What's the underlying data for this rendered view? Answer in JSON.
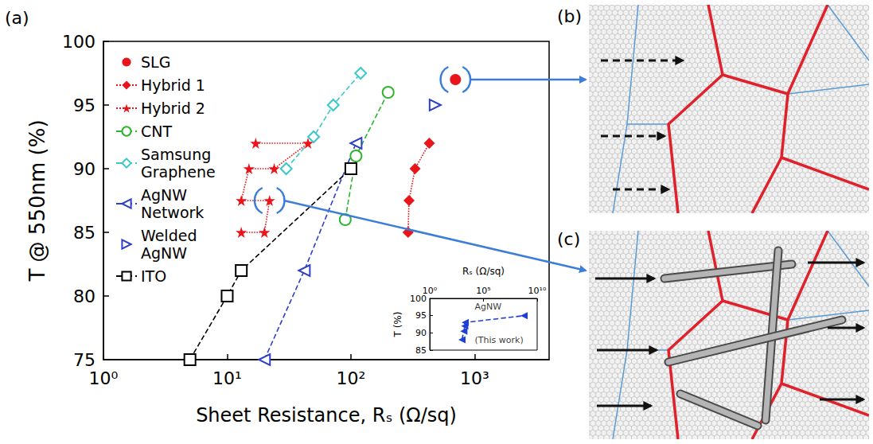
{
  "figure": {
    "panel_labels": [
      "(a)",
      "(b)",
      "(c)"
    ]
  },
  "chart_data": [
    {
      "type": "line",
      "x_label": "Sheet Resistance, Rₛ (Ω/sq)",
      "y_label": "T @ 550nm (%)",
      "log": "x",
      "xlim": [
        1,
        4000
      ],
      "xticks": [
        {
          "value": 1,
          "label": "10⁰"
        },
        {
          "value": 10,
          "label": "10¹"
        },
        {
          "value": 100,
          "label": "10²"
        },
        {
          "value": 1000,
          "label": "10³"
        }
      ],
      "ylim": [
        75,
        100
      ],
      "yticks": [
        75,
        80,
        85,
        90,
        95,
        100
      ],
      "grid": false,
      "legend": "top-left",
      "series": [
        {
          "name": "SLG",
          "color": "#e8151b",
          "marker": "circle",
          "line_style": "none",
          "x": [
            700
          ],
          "values": [
            97
          ]
        },
        {
          "name": "Hybrid 1",
          "color": "#e8151b",
          "marker": "diamond",
          "line_style": "dotted",
          "x": [
            290,
            295,
            330,
            430
          ],
          "values": [
            85,
            87.5,
            90,
            92
          ]
        },
        {
          "name": "Hybrid 2",
          "color": "#e8151b",
          "marker": "star",
          "line_style": "dotted",
          "x": [
            13,
            20,
            22,
            13,
            15,
            24,
            45,
            17
          ],
          "values": [
            85,
            85,
            87.5,
            87.5,
            90,
            90,
            92,
            92
          ]
        },
        {
          "name": "CNT",
          "color": "#2db52d",
          "marker": "open-circle",
          "line_style": "dashed",
          "x": [
            90,
            110,
            200
          ],
          "values": [
            86,
            91,
            96
          ]
        },
        {
          "name": "Samsung Graphene",
          "color": "#3cc8c8",
          "marker": "open-diamond",
          "line_style": "dashed",
          "x": [
            30,
            50,
            72,
            120
          ],
          "values": [
            90,
            92.5,
            95,
            97.5
          ]
        },
        {
          "name": "AgNW Network",
          "color": "#2e3fc9",
          "marker": "open-triangle-left",
          "line_style": "dashed",
          "x": [
            20,
            42,
            110
          ],
          "values": [
            75,
            82,
            92
          ]
        },
        {
          "name": "Welded AgNW",
          "color": "#2e3fc9",
          "marker": "open-triangle-right",
          "line_style": "none",
          "x": [
            480
          ],
          "values": [
            95
          ]
        },
        {
          "name": "ITO",
          "color": "#000000",
          "marker": "open-square",
          "line_style": "dashed",
          "x": [
            5,
            10,
            13,
            100
          ],
          "values": [
            75,
            80,
            82,
            90
          ]
        }
      ]
    },
    {
      "type": "line",
      "x_label": "Rₛ (Ω/sq)",
      "y_label": "T (%)",
      "log": "x",
      "xlim": [
        1,
        10000000000
      ],
      "xticks": [
        {
          "value": 1,
          "label": "10⁰"
        },
        {
          "value": 100000,
          "label": "10⁵"
        },
        {
          "value": 10000000000,
          "label": "10¹⁰"
        }
      ],
      "ylim": [
        85,
        100
      ],
      "yticks": [
        85,
        90,
        95,
        100
      ],
      "grid": false,
      "annotations": [
        {
          "text": "AgNW",
          "x": 10000,
          "y": 97.5
        },
        {
          "text": "(This work)",
          "x": 10000,
          "y": 88
        }
      ],
      "series": [
        {
          "color": "#1f3fd6",
          "marker": "triangle-left",
          "line_style": "dashed",
          "x": [
            1000,
            1500,
            1800,
            2000,
            600000000
          ],
          "values": [
            88,
            90.5,
            92,
            93,
            95
          ]
        }
      ]
    }
  ]
}
